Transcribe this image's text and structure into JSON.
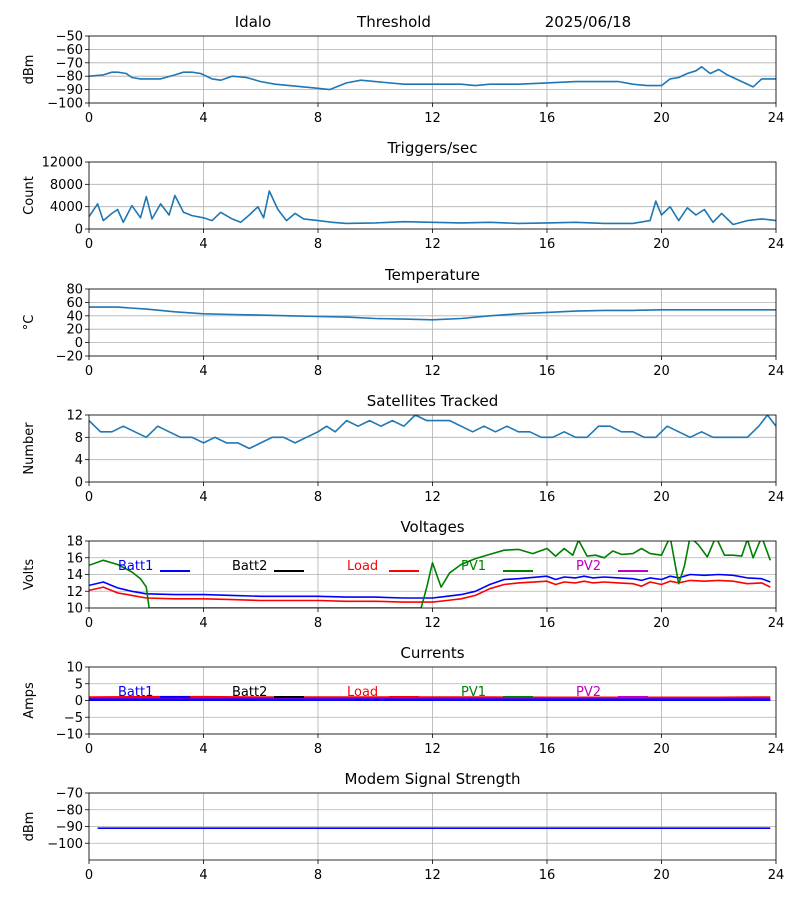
{
  "header": {
    "station": "Idalo",
    "mode": "Threshold",
    "date": "2025/06/18"
  },
  "chart_data": [
    {
      "id": "signal",
      "type": "line",
      "title": "",
      "ylabel": "dBm",
      "xlim": [
        0,
        24
      ],
      "ylim": [
        -100,
        -50
      ],
      "xticks": [
        0,
        4,
        8,
        12,
        16,
        20,
        24
      ],
      "yticks": [
        -100,
        -90,
        -80,
        -70,
        -60,
        -50
      ],
      "grid": true,
      "series": [
        {
          "color": "#1f77b4",
          "x": [
            0,
            0.5,
            0.8,
            1,
            1.3,
            1.5,
            1.8,
            2,
            2.5,
            3,
            3.3,
            3.6,
            3.9,
            4.3,
            4.6,
            5,
            5.5,
            6,
            6.5,
            7,
            7.5,
            8,
            8.4,
            9,
            9.5,
            10,
            11,
            11.5,
            12,
            13,
            13.5,
            14,
            15,
            16,
            17,
            18,
            18.5,
            19,
            19.5,
            20,
            20.3,
            20.6,
            20.9,
            21.2,
            21.4,
            21.7,
            22,
            22.3,
            22.6,
            22.9,
            23.2,
            23.5,
            24
          ],
          "y": [
            -80,
            -79,
            -77,
            -77,
            -78,
            -81,
            -82,
            -82,
            -82,
            -79,
            -77,
            -77,
            -78,
            -82,
            -83,
            -80,
            -81,
            -84,
            -86,
            -87,
            -88,
            -89,
            -90,
            -85,
            -83,
            -84,
            -86,
            -86,
            -86,
            -86,
            -87,
            -86,
            -86,
            -85,
            -84,
            -84,
            -84,
            -86,
            -87,
            -87,
            -82,
            -81,
            -78,
            -76,
            -73,
            -78,
            -75,
            -79,
            -82,
            -85,
            -88,
            -82,
            -82
          ]
        }
      ]
    },
    {
      "id": "triggers",
      "type": "line",
      "title": "Triggers/sec",
      "ylabel": "Count",
      "xlim": [
        0,
        24
      ],
      "ylim": [
        0,
        12000
      ],
      "xticks": [
        0,
        4,
        8,
        12,
        16,
        20,
        24
      ],
      "yticks": [
        0,
        4000,
        8000,
        12000
      ],
      "grid": true,
      "series": [
        {
          "color": "#1f77b4",
          "x": [
            0,
            0.3,
            0.5,
            0.8,
            1,
            1.2,
            1.5,
            1.8,
            2,
            2.2,
            2.5,
            2.8,
            3,
            3.3,
            3.6,
            4,
            4.3,
            4.6,
            5,
            5.3,
            5.6,
            5.9,
            6.1,
            6.3,
            6.6,
            6.9,
            7.2,
            7.5,
            8,
            8.5,
            9,
            10,
            11,
            12,
            13,
            14,
            15,
            16,
            17,
            18,
            19,
            19.6,
            19.8,
            20,
            20.3,
            20.6,
            20.9,
            21.2,
            21.5,
            21.8,
            22.1,
            22.5,
            23,
            23.5,
            24
          ],
          "y": [
            2200,
            4500,
            1500,
            2800,
            3500,
            1200,
            4200,
            2000,
            5800,
            1800,
            4500,
            2500,
            6000,
            3000,
            2400,
            2000,
            1500,
            3000,
            1800,
            1200,
            2500,
            4000,
            2000,
            6800,
            3500,
            1500,
            2800,
            1800,
            1500,
            1200,
            1000,
            1100,
            1300,
            1200,
            1100,
            1200,
            1000,
            1100,
            1200,
            1000,
            1000,
            1500,
            5000,
            2500,
            4000,
            1500,
            3800,
            2500,
            3500,
            1200,
            2800,
            800,
            1500,
            1800,
            1500
          ]
        }
      ]
    },
    {
      "id": "temperature",
      "type": "line",
      "title": "Temperature",
      "ylabel": "°C",
      "xlim": [
        0,
        24
      ],
      "ylim": [
        -20,
        80
      ],
      "xticks": [
        0,
        4,
        8,
        12,
        16,
        20,
        24
      ],
      "yticks": [
        -20,
        0,
        20,
        40,
        60,
        80
      ],
      "grid": true,
      "series": [
        {
          "color": "#1f77b4",
          "x": [
            0,
            1,
            2,
            3,
            4,
            5,
            6,
            7,
            8,
            9,
            10,
            11,
            12,
            13,
            14,
            15,
            16,
            17,
            18,
            19,
            20,
            21,
            22,
            23,
            24
          ],
          "y": [
            53,
            53,
            50,
            46,
            43,
            42,
            41,
            40,
            39,
            38,
            36,
            35,
            34,
            36,
            40,
            43,
            45,
            47,
            48,
            48,
            49,
            49,
            49,
            49,
            49
          ]
        }
      ]
    },
    {
      "id": "satellites",
      "type": "line",
      "title": "Satellites Tracked",
      "ylabel": "Number",
      "xlim": [
        0,
        24
      ],
      "ylim": [
        0,
        12
      ],
      "xticks": [
        0,
        4,
        8,
        12,
        16,
        20,
        24
      ],
      "yticks": [
        0,
        4,
        8,
        12
      ],
      "grid": true,
      "series": [
        {
          "color": "#1f77b4",
          "x": [
            0,
            0.2,
            0.4,
            0.8,
            1.2,
            1.6,
            2,
            2.4,
            2.8,
            3.2,
            3.6,
            4,
            4.4,
            4.8,
            5.2,
            5.6,
            6,
            6.4,
            6.8,
            7.2,
            7.6,
            8,
            8.3,
            8.6,
            9,
            9.4,
            9.8,
            10.2,
            10.6,
            11,
            11.4,
            11.8,
            12.2,
            12.6,
            13,
            13.4,
            13.8,
            14.2,
            14.6,
            15,
            15.4,
            15.8,
            16.2,
            16.6,
            17,
            17.4,
            17.8,
            18.2,
            18.6,
            19,
            19.4,
            19.8,
            20.2,
            20.6,
            21,
            21.4,
            21.8,
            22.2,
            22.6,
            23,
            23.4,
            23.7,
            24
          ],
          "y": [
            11,
            10,
            9,
            9,
            10,
            9,
            8,
            10,
            9,
            8,
            8,
            7,
            8,
            7,
            7,
            6,
            7,
            8,
            8,
            7,
            8,
            9,
            10,
            9,
            11,
            10,
            11,
            10,
            11,
            10,
            12,
            11,
            11,
            11,
            10,
            9,
            10,
            9,
            10,
            9,
            9,
            8,
            8,
            9,
            8,
            8,
            10,
            10,
            9,
            9,
            8,
            8,
            10,
            9,
            8,
            9,
            8,
            8,
            8,
            8,
            10,
            12,
            10
          ]
        }
      ]
    },
    {
      "id": "voltages",
      "type": "line",
      "title": "Voltages",
      "ylabel": "Volts",
      "xlim": [
        0,
        24
      ],
      "ylim": [
        10,
        18
      ],
      "xticks": [
        0,
        4,
        8,
        12,
        16,
        20,
        24
      ],
      "yticks": [
        10,
        12,
        14,
        16,
        18
      ],
      "grid": true,
      "legend": [
        "Batt1",
        "Batt2",
        "Load",
        "PV1",
        "PV2"
      ],
      "legend_placement": "top",
      "series": [
        {
          "name": "Batt1",
          "color": "#0000ff",
          "x": [
            0,
            0.5,
            1,
            1.5,
            2,
            3,
            4,
            5,
            6,
            7,
            8,
            9,
            10,
            11,
            12,
            12.5,
            13,
            13.5,
            14,
            14.5,
            15,
            16,
            16.3,
            16.6,
            17,
            17.3,
            17.6,
            18,
            18.5,
            19,
            19.3,
            19.6,
            20,
            20.3,
            20.6,
            21,
            21.5,
            22,
            22.5,
            23,
            23.5,
            23.8
          ],
          "y": [
            12.7,
            13.1,
            12.4,
            12,
            11.7,
            11.6,
            11.6,
            11.5,
            11.4,
            11.4,
            11.4,
            11.3,
            11.3,
            11.2,
            11.2,
            11.4,
            11.6,
            12,
            12.8,
            13.4,
            13.5,
            13.8,
            13.4,
            13.7,
            13.6,
            13.8,
            13.6,
            13.7,
            13.6,
            13.5,
            13.3,
            13.6,
            13.4,
            13.8,
            13.6,
            14,
            13.9,
            14,
            13.9,
            13.6,
            13.5,
            13.1
          ]
        },
        {
          "name": "Load",
          "color": "#ff0000",
          "x": [
            0,
            0.5,
            1,
            1.5,
            2,
            3,
            4,
            5,
            6,
            7,
            8,
            9,
            10,
            11,
            12,
            12.5,
            13,
            13.5,
            14,
            14.5,
            15,
            16,
            16.3,
            16.6,
            17,
            17.3,
            17.6,
            18,
            18.5,
            19,
            19.3,
            19.6,
            20,
            20.3,
            20.6,
            21,
            21.5,
            22,
            22.5,
            23,
            23.5,
            23.8
          ],
          "y": [
            12.1,
            12.5,
            11.8,
            11.5,
            11.2,
            11.1,
            11.1,
            11,
            10.9,
            10.9,
            10.9,
            10.8,
            10.8,
            10.7,
            10.7,
            10.9,
            11.1,
            11.5,
            12.3,
            12.8,
            13,
            13.2,
            12.8,
            13.1,
            13,
            13.2,
            13,
            13.1,
            13,
            12.9,
            12.6,
            13.1,
            12.8,
            13.2,
            13,
            13.3,
            13.2,
            13.3,
            13.2,
            12.9,
            13,
            12.5
          ]
        },
        {
          "name": "PV1",
          "color": "#008000",
          "x": [
            0,
            0.5,
            1,
            1.5,
            1.8,
            2,
            2.1,
            11.6,
            11.8,
            12,
            12.3,
            12.6,
            13,
            13.5,
            14,
            14.5,
            15,
            15.5,
            16,
            16.3,
            16.6,
            16.9,
            17.1,
            17.4,
            17.7,
            18,
            18.3,
            18.6,
            19,
            19.3,
            19.6,
            20,
            20.3,
            20.6,
            20.8,
            21,
            21.3,
            21.6,
            21.9,
            22.2,
            22.5,
            22.8,
            23,
            23.2,
            23.5,
            23.8
          ],
          "y": [
            15.1,
            15.7,
            15.2,
            14.3,
            13.5,
            12.5,
            10,
            10,
            12.5,
            15.4,
            12.5,
            14.2,
            15.2,
            15.9,
            16.4,
            16.9,
            17,
            16.5,
            17.1,
            16.2,
            17.1,
            16.3,
            18.1,
            16.2,
            16.3,
            16,
            16.8,
            16.4,
            16.5,
            17.1,
            16.5,
            16.3,
            18.5,
            12.9,
            15,
            18.5,
            17.5,
            16.1,
            18.5,
            16.3,
            16.3,
            16.2,
            18.2,
            16,
            18.5,
            15.7
          ]
        }
      ]
    },
    {
      "id": "currents",
      "type": "line",
      "title": "Currents",
      "ylabel": "Amps",
      "xlim": [
        0,
        24
      ],
      "ylim": [
        -10,
        10
      ],
      "xticks": [
        0,
        4,
        8,
        12,
        16,
        20,
        24
      ],
      "yticks": [
        -10,
        -5,
        0,
        5,
        10
      ],
      "grid": true,
      "legend": [
        "Batt1",
        "Batt2",
        "Load",
        "PV1",
        "PV2"
      ],
      "legend_placement": "top",
      "series": [
        {
          "name": "Load",
          "color": "#ff0000",
          "x": [
            0,
            2,
            4,
            6,
            8,
            10,
            12,
            14,
            16,
            18,
            20,
            22,
            23.8
          ],
          "y": [
            0.9,
            1,
            1,
            0.9,
            0.9,
            0.9,
            0.9,
            0.9,
            0.8,
            0.8,
            0.8,
            0.8,
            0.9
          ]
        },
        {
          "name": "PV2",
          "color": "#bf00bf",
          "x": [
            0,
            2,
            4,
            6,
            8,
            10,
            12,
            14,
            16,
            18,
            20,
            22,
            23.8
          ],
          "y": [
            0.4,
            0.4,
            0.4,
            0.4,
            0.4,
            0.4,
            0.4,
            0.4,
            0.4,
            0.4,
            0.4,
            0.4,
            0.4
          ]
        },
        {
          "name": "Batt1",
          "color": "#0000ff",
          "x": [
            0,
            2,
            4,
            6,
            8,
            10,
            12,
            14,
            16,
            18,
            20,
            22,
            23.8
          ],
          "y": [
            0.2,
            0.2,
            0.2,
            0.2,
            0.2,
            0.2,
            0.2,
            0.2,
            0.2,
            0.2,
            0.2,
            0.2,
            0.2
          ]
        }
      ]
    },
    {
      "id": "modem",
      "type": "line",
      "title": "Modem Signal Strength",
      "ylabel": "dBm",
      "xlim": [
        0,
        24
      ],
      "ylim": [
        -110,
        -70
      ],
      "xticks": [
        0,
        4,
        8,
        12,
        16,
        20,
        24
      ],
      "yticks": [
        -100,
        -90,
        -80,
        -70
      ],
      "grid": true,
      "series": [
        {
          "color": "#0000ff",
          "x": [
            0.3,
            23.8
          ],
          "y": [
            -91,
            -91
          ]
        }
      ]
    }
  ],
  "legend_colors": {
    "Batt1": "#0000ff",
    "Batt2": "#000000",
    "Load": "#ff0000",
    "PV1": "#008000",
    "PV2": "#bf00bf"
  }
}
